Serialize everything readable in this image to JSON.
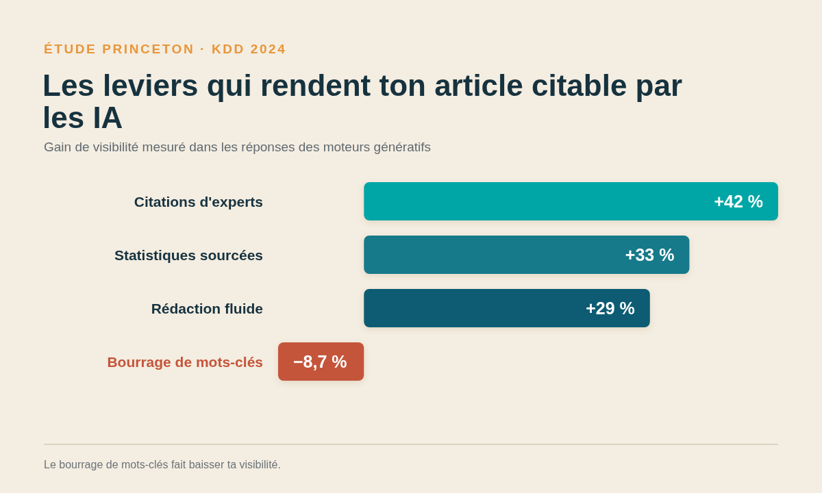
{
  "chart_data": {
    "type": "bar",
    "orientation": "horizontal",
    "title": "Les leviers qui rendent ton article citable par les IA",
    "subtitle": "Gain de visibilité mesuré dans les réponses des moteurs génératifs",
    "categories": [
      "Citations d'experts",
      "Statistiques sourcées",
      "Rédaction fluide",
      "Bourrage de mots-clés"
    ],
    "values": [
      42,
      33,
      29,
      -8.7
    ],
    "colors": [
      "#03a6a6",
      "#137a8a",
      "#0f5c73",
      "#c4553a"
    ],
    "value_labels": [
      "+42 %",
      "+33 %",
      "+29 %",
      "−8,7 %"
    ],
    "annotations": [
      "ÉTUDE PRINCETON · KDD 2024",
      "Le bourrage de mots-clés fait baisser ta visibilité."
    ]
  }
}
